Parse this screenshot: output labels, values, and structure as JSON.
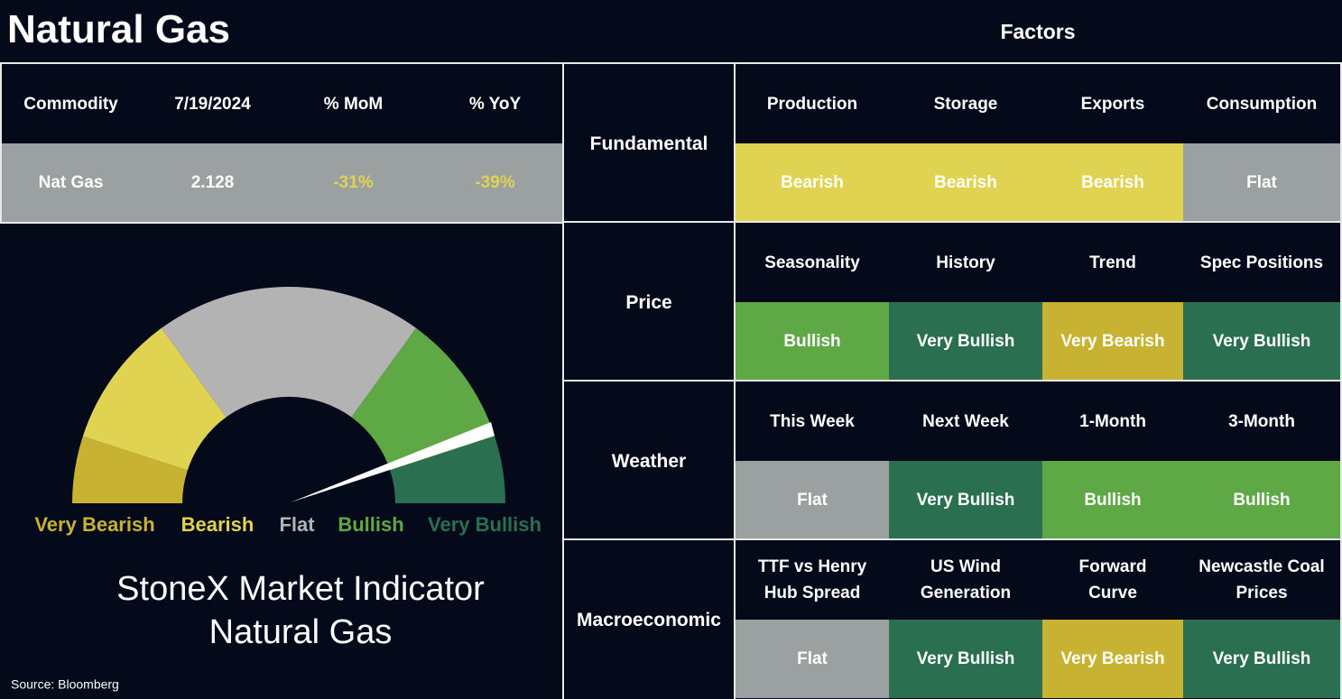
{
  "header": {
    "title": "Natural Gas",
    "factors_title": "Factors"
  },
  "commodity_table": {
    "columns": [
      "Commodity",
      "7/19/2024",
      "% MoM",
      "% YoY"
    ],
    "row": [
      "Nat Gas",
      "2.128",
      "-31%",
      "-39%"
    ]
  },
  "gauge": {
    "labels": [
      "Very Bearish",
      "Bearish",
      "Flat",
      "Bullish",
      "Very Bullish"
    ],
    "colors": [
      "#c8b232",
      "#e0d352",
      "#b3b3b3",
      "#5ea845",
      "#2a7050"
    ],
    "title": [
      "StoneX Market Indicator",
      "Natural Gas"
    ]
  },
  "source": "Source: Bloomberg",
  "factors": [
    {
      "group": "Fundamental",
      "items": [
        {
          "name": "Production",
          "signal": "Bearish",
          "color": "#e0d352"
        },
        {
          "name": "Storage",
          "signal": "Bearish",
          "color": "#e0d352"
        },
        {
          "name": "Exports",
          "signal": "Bearish",
          "color": "#e0d352"
        },
        {
          "name": "Consumption",
          "signal": "Flat",
          "color": "#9ba1a0"
        }
      ]
    },
    {
      "group": "Price",
      "items": [
        {
          "name": "Seasonality",
          "signal": "Bullish",
          "color": "#5ea845"
        },
        {
          "name": "History",
          "signal": "Very Bullish",
          "color": "#2a7050"
        },
        {
          "name": "Trend",
          "signal": "Very Bearish",
          "color": "#c8b232"
        },
        {
          "name": "Spec Positions",
          "signal": "Very Bullish",
          "color": "#2a7050"
        }
      ]
    },
    {
      "group": "Weather",
      "items": [
        {
          "name": "This Week",
          "signal": "Flat",
          "color": "#9ba1a0"
        },
        {
          "name": "Next Week",
          "signal": "Very Bullish",
          "color": "#2a7050"
        },
        {
          "name": "1-Month",
          "signal": "Bullish",
          "color": "#5ea845"
        },
        {
          "name": "3-Month",
          "signal": "Bullish",
          "color": "#5ea845"
        }
      ]
    },
    {
      "group": "Macroeconomic",
      "items": [
        {
          "name": "TTF vs Henry\nHub Spread",
          "signal": "Flat",
          "color": "#9ba1a0"
        },
        {
          "name": "US Wind\nGeneration",
          "signal": "Very Bullish",
          "color": "#2a7050"
        },
        {
          "name": "Forward\nCurve",
          "signal": "Very Bearish",
          "color": "#c8b232"
        },
        {
          "name": "Newcastle Coal\nPrices",
          "signal": "Very Bullish",
          "color": "#2a7050"
        }
      ]
    }
  ]
}
